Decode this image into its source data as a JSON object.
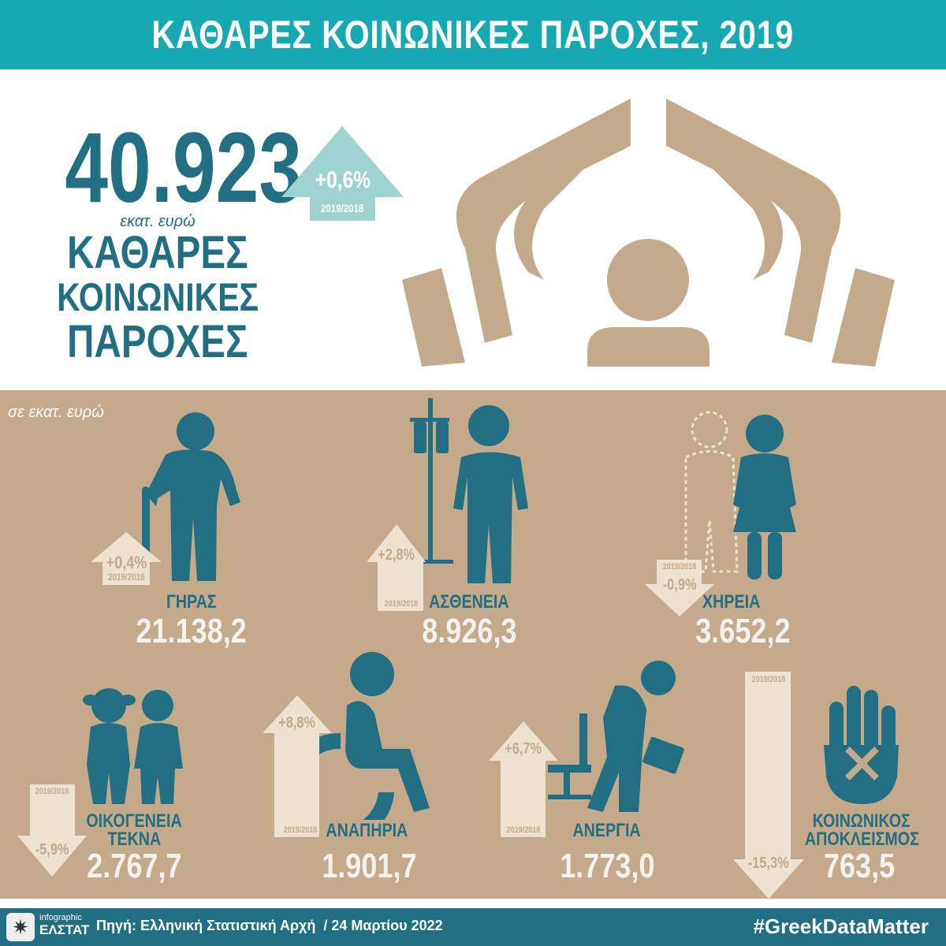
{
  "header": {
    "title": "ΚΑΘΑΡΕΣ ΚΟΙΝΩΝΙΚΕΣ ΠΑΡΟΧΕΣ, 2019"
  },
  "summary": {
    "total": "40.923",
    "unit": "εκατ. ευρώ",
    "label_lines": [
      "ΚΑΘΑΡΕΣ",
      "ΚΟΙΝΩΝΙΚΕΣ",
      "ΠΑΡΟΧΕΣ"
    ],
    "change": "+0,6%",
    "period": "2019/2018"
  },
  "unit_note": "σε εκατ. ευρώ",
  "categories": [
    {
      "label": "ΓΗΡΑΣ",
      "value": "21.138,2",
      "change": "+0,4%",
      "period": "2019/2018",
      "direction": "up"
    },
    {
      "label": "ΑΣΘΕΝΕΙΑ",
      "value": "8.926,3",
      "change": "+2,8%",
      "period": "2019/2018",
      "direction": "up"
    },
    {
      "label": "ΧΗΡΕΙΑ",
      "value": "3.652,2",
      "change": "-0,9%",
      "period": "2019/2018",
      "direction": "down"
    },
    {
      "label": "ΟΙΚΟΓΕΝΕΙΑ",
      "label2": "ΤΕΚΝΑ",
      "value": "2.767,7",
      "change": "-5,9%",
      "period": "2019/2018",
      "direction": "down"
    },
    {
      "label": "ΑΝΑΠΗΡΙΑ",
      "value": "1.901,7",
      "change": "+8,8%",
      "period": "2019/2018",
      "direction": "up"
    },
    {
      "label": "ΑΝΕΡΓΙΑ",
      "value": "1.773,0",
      "change": "+6,7%",
      "period": "2019/2018",
      "direction": "up"
    },
    {
      "label": "ΚΟΙΝΩΝΙΚΟΣ",
      "label2": "ΑΠΟΚΛΕΙΣΜΟΣ",
      "value": "763,5",
      "change": "-15,3%",
      "period": "2019/2018",
      "direction": "down"
    }
  ],
  "footer": {
    "logo_top": "infographic",
    "logo_bottom": "ΕΛΣΤΑΤ",
    "source": "Πηγή: Ελληνική Στατιστική Αρχή  / 24 Μαρτίου 2022",
    "hashtag": "#GreekDataMatter"
  },
  "colors": {
    "header": "#17a9b1",
    "dark_teal": "#226e82",
    "tan": "#c4aa8a",
    "cream": "#ece2cf",
    "light_teal": "#9fd3cf"
  }
}
